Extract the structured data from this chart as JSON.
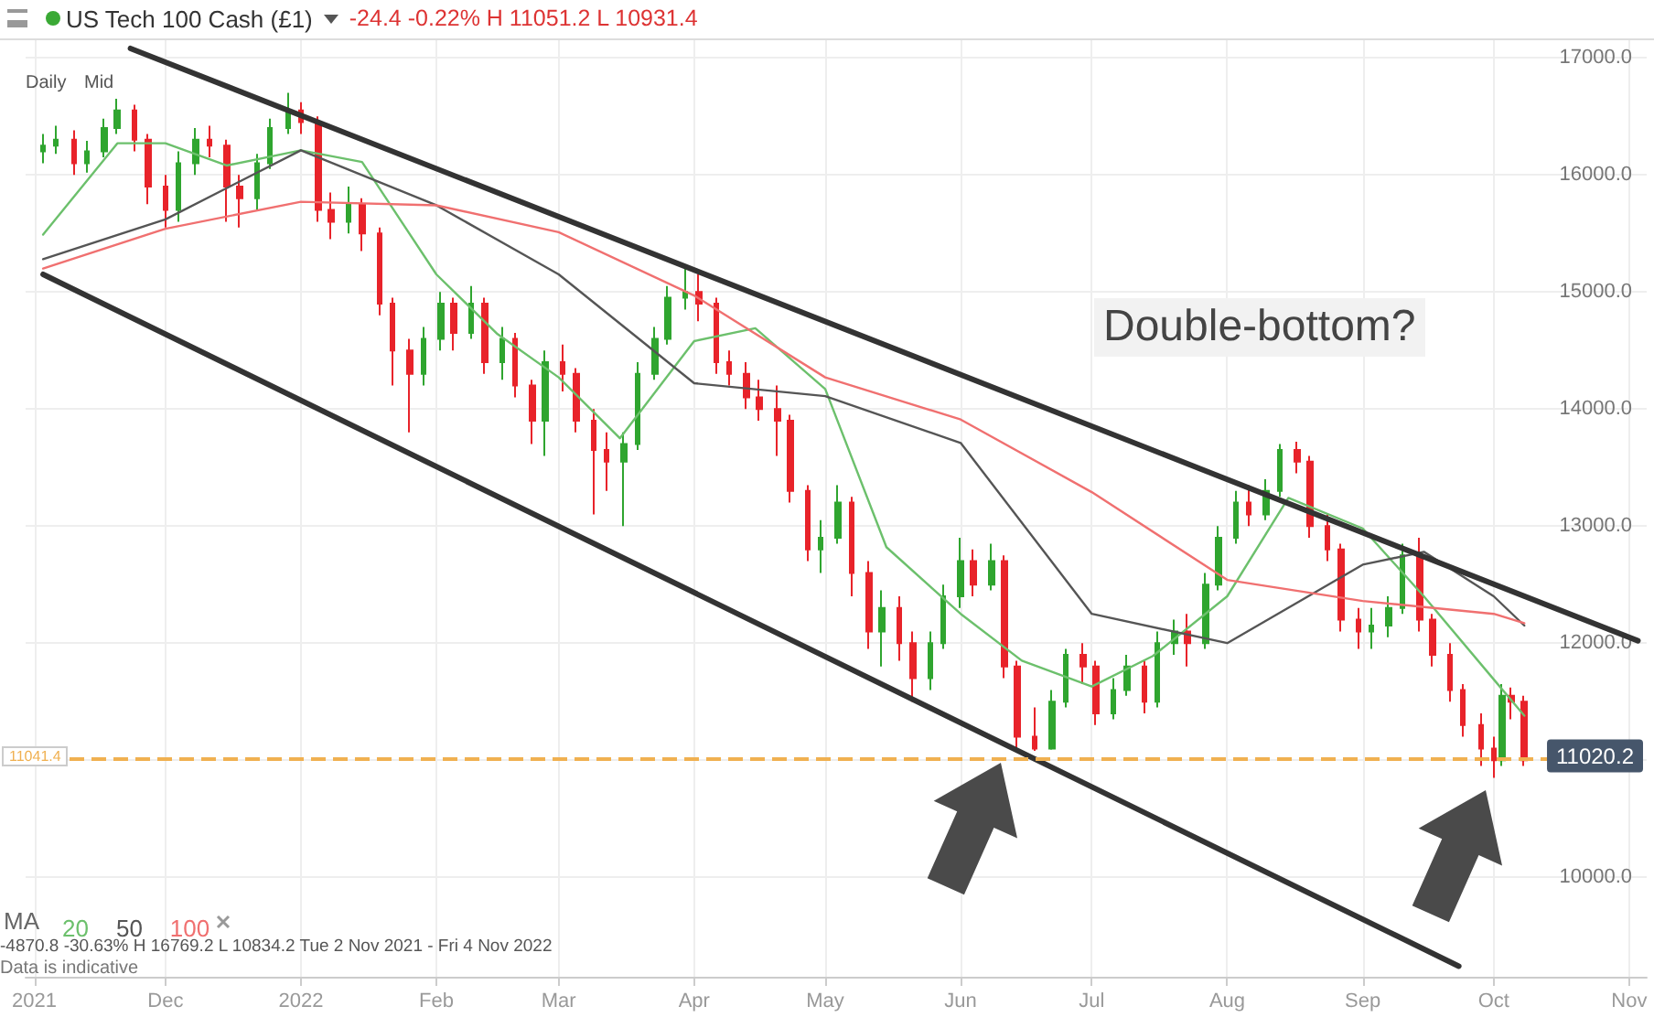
{
  "chart_data": {
    "type": "candlestick",
    "title": "US Tech 100 Cash (£1)",
    "subtitle": "-24.4 -0.22% H 11051.2 L 10931.4",
    "legend_title": "MA",
    "annotations": [
      "Daily",
      "Mid",
      "Double-bottom?",
      "11041.4",
      "-4870.8  -30.63%  H 16769.2  L 10834.2  Tue 2 Nov 2021 - Fri 4 Nov 2022",
      "Data is indicative"
    ],
    "xlim": [
      "2021-10-30",
      "2022-11-05"
    ],
    "xticks": [
      {
        "value": "2021-11-01",
        "label": "2021"
      },
      {
        "value": "2021-12-01",
        "label": "Dec"
      },
      {
        "value": "2022-01-01",
        "label": "2022"
      },
      {
        "value": "2022-02-01",
        "label": "Feb"
      },
      {
        "value": "2022-03-01",
        "label": "Mar"
      },
      {
        "value": "2022-04-01",
        "label": "Apr"
      },
      {
        "value": "2022-05-01",
        "label": "May"
      },
      {
        "value": "2022-06-01",
        "label": "Jun"
      },
      {
        "value": "2022-07-01",
        "label": "Jul"
      },
      {
        "value": "2022-08-01",
        "label": "Aug"
      },
      {
        "value": "2022-09-01",
        "label": "Sep"
      },
      {
        "value": "2022-10-01",
        "label": "Oct"
      },
      {
        "value": "2022-11-01",
        "label": "Nov"
      }
    ],
    "ylim": [
      9150,
      17150
    ],
    "yticks": [
      {
        "value": 10000,
        "label": "10000.0"
      },
      {
        "value": 11000,
        "label": null
      },
      {
        "value": 12000,
        "label": "12000.0"
      },
      {
        "value": 13000,
        "label": "13000.0"
      },
      {
        "value": 14000,
        "label": "14000.0"
      },
      {
        "value": 15000,
        "label": "15000.0"
      },
      {
        "value": 16000,
        "label": "16000.0"
      },
      {
        "value": 17000,
        "label": "17000.0"
      }
    ],
    "grid": true,
    "legend": "bottom left",
    "ref_lines": [
      {
        "axis": "y",
        "value": 11020.2,
        "label": "11020.2",
        "color": "#f0b050",
        "line_style": "dashed"
      }
    ],
    "series": [
      {
        "x": [
          "2021-11-03",
          "2021-11-06",
          "2021-11-10",
          "2021-11-13",
          "2021-11-17",
          "2021-11-20",
          "2021-11-24",
          "2021-11-27",
          "2021-12-01",
          "2021-12-04",
          "2021-12-08",
          "2021-12-11",
          "2021-12-15",
          "2021-12-18",
          "2021-12-22",
          "2021-12-25",
          "2021-12-29",
          "2022-01-01",
          "2022-01-05",
          "2022-01-08",
          "2022-01-12",
          "2022-01-15",
          "2022-01-19",
          "2022-01-22",
          "2022-01-26",
          "2022-01-29",
          "2022-02-02",
          "2022-02-05",
          "2022-02-09",
          "2022-02-12",
          "2022-02-16",
          "2022-02-19",
          "2022-02-23",
          "2022-02-26",
          "2022-03-02",
          "2022-03-05",
          "2022-03-09",
          "2022-03-12",
          "2022-03-16",
          "2022-03-19",
          "2022-03-23",
          "2022-03-26",
          "2022-03-30",
          "2022-04-02",
          "2022-04-06",
          "2022-04-09",
          "2022-04-13",
          "2022-04-16",
          "2022-04-20",
          "2022-04-23",
          "2022-04-27",
          "2022-04-30",
          "2022-05-04",
          "2022-05-07",
          "2022-05-11",
          "2022-05-14",
          "2022-05-18",
          "2022-05-21",
          "2022-05-25",
          "2022-05-28",
          "2022-06-01",
          "2022-06-04",
          "2022-06-08",
          "2022-06-11",
          "2022-06-14",
          "2022-06-18",
          "2022-06-22",
          "2022-06-25",
          "2022-06-29",
          "2022-07-02",
          "2022-07-06",
          "2022-07-09",
          "2022-07-13",
          "2022-07-16",
          "2022-07-20",
          "2022-07-23",
          "2022-07-27",
          "2022-07-30",
          "2022-08-03",
          "2022-08-06",
          "2022-08-10",
          "2022-08-13",
          "2022-08-17",
          "2022-08-20",
          "2022-08-24",
          "2022-08-27",
          "2022-08-31",
          "2022-09-03",
          "2022-09-07",
          "2022-09-10",
          "2022-09-14",
          "2022-09-17",
          "2022-09-21",
          "2022-09-24",
          "2022-09-28",
          "2022-10-01",
          "2022-10-03",
          "2022-10-05",
          "2022-10-08"
        ],
        "ohlc": [
          [
            16200,
            16350,
            16100,
            16250
          ],
          [
            16250,
            16420,
            16180,
            16300
          ],
          [
            16300,
            16380,
            16000,
            16100
          ],
          [
            16100,
            16290,
            16020,
            16200
          ],
          [
            16200,
            16480,
            16150,
            16400
          ],
          [
            16400,
            16650,
            16350,
            16550
          ],
          [
            16550,
            16600,
            16200,
            16300
          ],
          [
            16300,
            16350,
            15750,
            15900
          ],
          [
            15900,
            16000,
            15550,
            15700
          ],
          [
            15700,
            16200,
            15600,
            16100
          ],
          [
            16100,
            16400,
            16000,
            16300
          ],
          [
            16300,
            16420,
            16150,
            16250
          ],
          [
            16250,
            16300,
            15600,
            15900
          ],
          [
            15900,
            16000,
            15550,
            15800
          ],
          [
            15800,
            16180,
            15700,
            16100
          ],
          [
            16100,
            16480,
            16050,
            16400
          ],
          [
            16400,
            16700,
            16350,
            16550
          ],
          [
            16550,
            16620,
            16350,
            16450
          ],
          [
            16450,
            16500,
            15600,
            15700
          ],
          [
            15700,
            15850,
            15450,
            15600
          ],
          [
            15600,
            15900,
            15500,
            15750
          ],
          [
            15750,
            15800,
            15350,
            15500
          ],
          [
            15500,
            15550,
            14800,
            14900
          ],
          [
            14900,
            14950,
            14200,
            14500
          ],
          [
            14500,
            14600,
            13800,
            14300
          ],
          [
            14300,
            14700,
            14200,
            14600
          ],
          [
            14600,
            15000,
            14500,
            14900
          ],
          [
            14900,
            14950,
            14500,
            14650
          ],
          [
            14650,
            15050,
            14600,
            14900
          ],
          [
            14900,
            14950,
            14300,
            14400
          ],
          [
            14400,
            14700,
            14250,
            14600
          ],
          [
            14600,
            14650,
            14100,
            14200
          ],
          [
            14200,
            14250,
            13700,
            13900
          ],
          [
            13900,
            14500,
            13600,
            14400
          ],
          [
            14400,
            14550,
            14150,
            14300
          ],
          [
            14300,
            14350,
            13800,
            13900
          ],
          [
            13900,
            14000,
            13100,
            13650
          ],
          [
            13650,
            13800,
            13300,
            13550
          ],
          [
            13550,
            13800,
            13000,
            13700
          ],
          [
            13700,
            14400,
            13650,
            14300
          ],
          [
            14300,
            14700,
            14250,
            14600
          ],
          [
            14600,
            15050,
            14550,
            14950
          ],
          [
            14950,
            15230,
            14850,
            15000
          ],
          [
            15000,
            15150,
            14750,
            14900
          ],
          [
            14900,
            14950,
            14300,
            14400
          ],
          [
            14400,
            14500,
            14200,
            14300
          ],
          [
            14300,
            14400,
            14000,
            14100
          ],
          [
            14100,
            14250,
            13900,
            14000
          ],
          [
            14000,
            14200,
            13600,
            13900
          ],
          [
            13900,
            13950,
            13200,
            13300
          ],
          [
            13300,
            13350,
            12700,
            12800
          ],
          [
            12800,
            13050,
            12600,
            12900
          ],
          [
            12900,
            13350,
            12850,
            13200
          ],
          [
            13200,
            13250,
            12400,
            12600
          ],
          [
            12600,
            12700,
            11950,
            12100
          ],
          [
            12100,
            12450,
            11800,
            12300
          ],
          [
            12300,
            12400,
            11850,
            12000
          ],
          [
            12000,
            12100,
            11500,
            11700
          ],
          [
            11700,
            12100,
            11600,
            12000
          ],
          [
            12000,
            12500,
            11950,
            12400
          ],
          [
            12400,
            12900,
            12300,
            12700
          ],
          [
            12700,
            12800,
            12400,
            12500
          ],
          [
            12500,
            12850,
            12450,
            12700
          ],
          [
            12700,
            12750,
            11700,
            11800
          ],
          [
            11800,
            11850,
            11070,
            11200
          ],
          [
            11200,
            11450,
            11080,
            11100
          ],
          [
            11100,
            11600,
            11090,
            11500
          ],
          [
            11500,
            11950,
            11450,
            11900
          ],
          [
            11900,
            12000,
            11650,
            11800
          ],
          [
            11800,
            11850,
            11300,
            11400
          ],
          [
            11400,
            11700,
            11350,
            11600
          ],
          [
            11600,
            11900,
            11550,
            11800
          ],
          [
            11800,
            11850,
            11400,
            11500
          ],
          [
            11500,
            12100,
            11450,
            12000
          ],
          [
            12000,
            12200,
            11900,
            12100
          ],
          [
            12100,
            12250,
            11800,
            12000
          ],
          [
            12000,
            12600,
            11950,
            12500
          ],
          [
            12500,
            13000,
            12450,
            12900
          ],
          [
            12900,
            13300,
            12850,
            13200
          ],
          [
            13200,
            13350,
            13000,
            13100
          ],
          [
            13100,
            13400,
            13050,
            13300
          ],
          [
            13300,
            13700,
            13250,
            13650
          ],
          [
            13650,
            13720,
            13450,
            13550
          ],
          [
            13550,
            13600,
            12900,
            13000
          ],
          [
            13000,
            13100,
            12700,
            12800
          ],
          [
            12800,
            12850,
            12100,
            12200
          ],
          [
            12200,
            12300,
            11950,
            12100
          ],
          [
            12100,
            12300,
            11950,
            12150
          ],
          [
            12150,
            12400,
            12050,
            12300
          ],
          [
            12300,
            12850,
            12250,
            12750
          ],
          [
            12750,
            12900,
            12100,
            12200
          ],
          [
            12200,
            12250,
            11800,
            11900
          ],
          [
            11900,
            12000,
            11500,
            11600
          ],
          [
            11600,
            11650,
            11200,
            11300
          ],
          [
            11300,
            11400,
            10950,
            11100
          ],
          [
            11100,
            11200,
            10850,
            11000
          ],
          [
            11000,
            11650,
            10950,
            11550
          ],
          [
            11550,
            11620,
            11350,
            11500
          ],
          [
            11500,
            11550,
            10950,
            11000
          ]
        ]
      },
      {
        "type": "line",
        "name": "20",
        "color": "#6cc06c",
        "x": [
          "2021-11-03",
          "2021-11-20",
          "2021-12-01",
          "2021-12-15",
          "2022-01-01",
          "2022-01-15",
          "2022-02-01",
          "2022-02-15",
          "2022-03-01",
          "2022-03-15",
          "2022-04-01",
          "2022-04-15",
          "2022-05-01",
          "2022-05-15",
          "2022-06-01",
          "2022-06-15",
          "2022-07-01",
          "2022-07-15",
          "2022-08-01",
          "2022-08-15",
          "2022-09-01",
          "2022-09-15",
          "2022-10-01",
          "2022-10-08"
        ],
        "values": [
          15490,
          16270,
          16270,
          16080,
          16210,
          16110,
          15150,
          14640,
          14270,
          13750,
          14580,
          14690,
          14170,
          12820,
          12250,
          11850,
          11630,
          11890,
          12400,
          13240,
          12980,
          12400,
          11690,
          11380
        ]
      },
      {
        "type": "line",
        "name": "50",
        "color": "#555555",
        "x": [
          "2021-11-03",
          "2021-12-01",
          "2022-01-01",
          "2022-02-01",
          "2022-03-01",
          "2022-04-01",
          "2022-05-01",
          "2022-06-01",
          "2022-07-01",
          "2022-08-01",
          "2022-09-01",
          "2022-09-15",
          "2022-10-01",
          "2022-10-08"
        ],
        "values": [
          15280,
          15620,
          16210,
          15740,
          15150,
          14220,
          14110,
          13710,
          12250,
          12000,
          12670,
          12780,
          12400,
          12150
        ]
      },
      {
        "type": "line",
        "name": "100",
        "color": "#f07070",
        "x": [
          "2021-11-03",
          "2021-12-01",
          "2022-01-01",
          "2022-02-01",
          "2022-03-01",
          "2022-04-01",
          "2022-05-01",
          "2022-06-01",
          "2022-07-01",
          "2022-08-01",
          "2022-09-01",
          "2022-10-01",
          "2022-10-08"
        ],
        "values": [
          15200,
          15540,
          15770,
          15740,
          15510,
          14970,
          14270,
          13910,
          13290,
          12540,
          12360,
          12250,
          12170
        ]
      },
      {
        "type": "line",
        "color": "#333333",
        "x": [
          "2021-11-23",
          "2022-11-03"
        ],
        "values": [
          17080,
          12020
        ]
      },
      {
        "type": "line",
        "color": "#333333",
        "x": [
          "2021-11-03",
          "2022-09-23"
        ],
        "values": [
          15150,
          9240
        ]
      }
    ]
  }
}
